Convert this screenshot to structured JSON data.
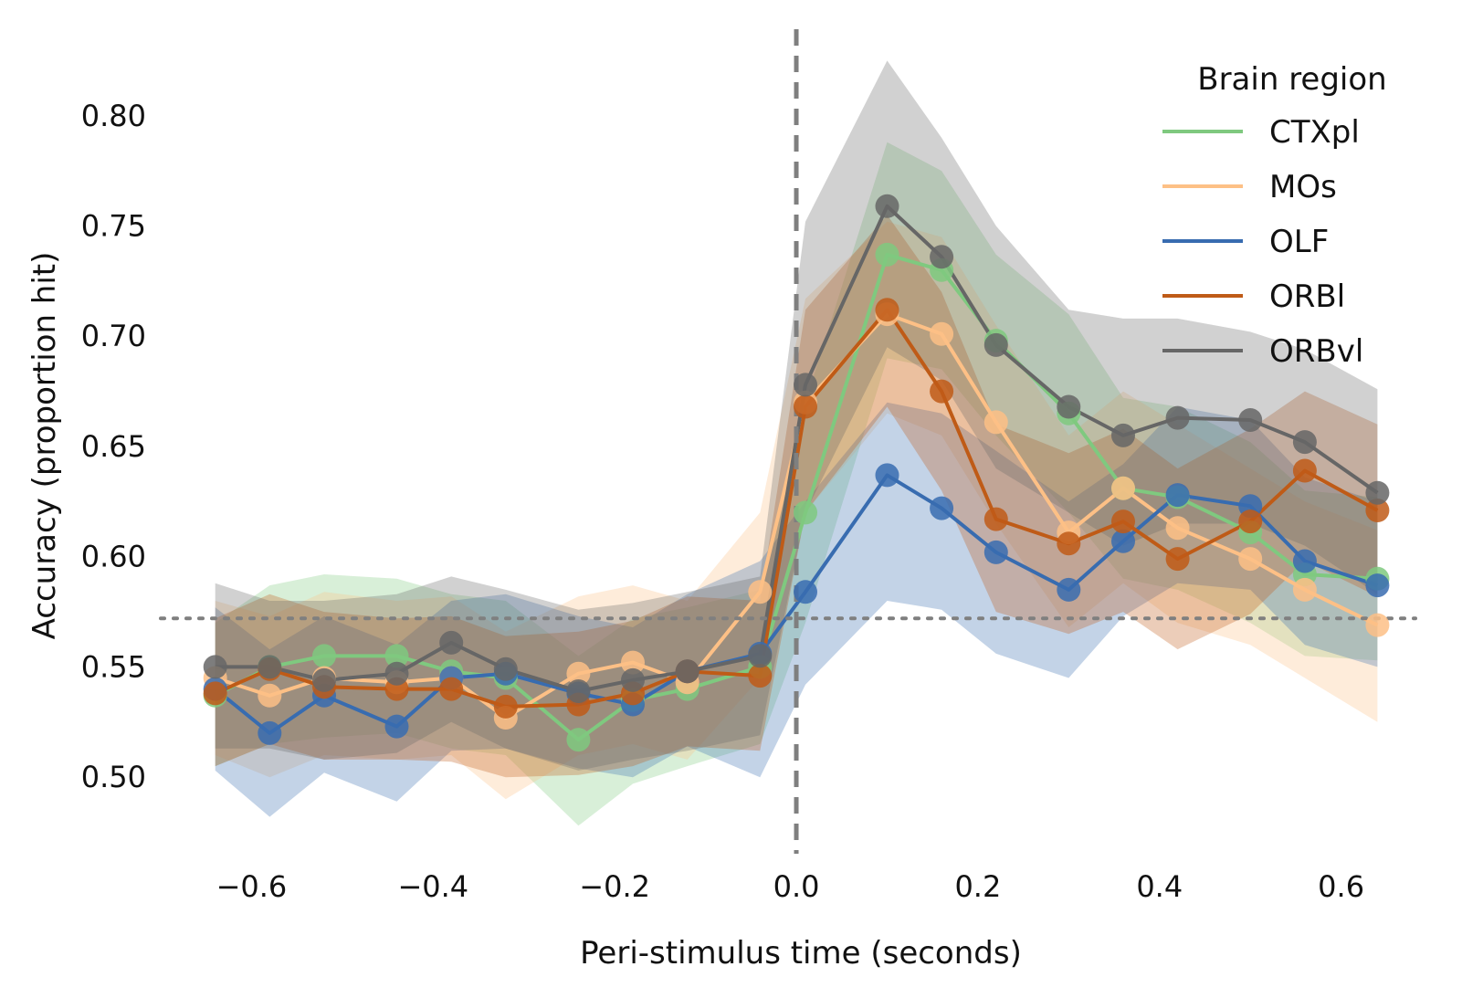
{
  "chart_data": {
    "type": "line",
    "title": "",
    "xlabel": "Peri-stimulus time (seconds)",
    "ylabel": "Accuracy (proportion hit)",
    "xlim": [
      -0.7,
      0.71
    ],
    "ylim": [
      0.457,
      0.838
    ],
    "xticks": [
      -0.6,
      -0.4,
      -0.2,
      0.0,
      0.2,
      0.4,
      0.6
    ],
    "xtick_labels": [
      "−0.6",
      "−0.4",
      "−0.2",
      "0.0",
      "0.2",
      "0.4",
      "0.6"
    ],
    "yticks": [
      0.5,
      0.55,
      0.6,
      0.65,
      0.7,
      0.75,
      0.8
    ],
    "ytick_labels": [
      "0.50",
      "0.55",
      "0.60",
      "0.65",
      "0.70",
      "0.75",
      "0.80"
    ],
    "grid": false,
    "legend": {
      "title": "Brain region",
      "position": "top-right"
    },
    "reference_lines": [
      {
        "orientation": "vertical",
        "value": 0.0,
        "style": "dashed",
        "color": "#7f7f7f"
      },
      {
        "orientation": "horizontal",
        "value": 0.572,
        "style": "dotted",
        "color": "#7f7f7f"
      }
    ],
    "x": [
      -0.64,
      -0.58,
      -0.52,
      -0.44,
      -0.38,
      -0.32,
      -0.24,
      -0.18,
      -0.12,
      -0.04,
      0.01,
      0.1,
      0.16,
      0.22,
      0.3,
      0.36,
      0.42,
      0.5,
      0.56,
      0.64
    ],
    "series": [
      {
        "name": "CTXpl",
        "color": "#7fc97f",
        "values": [
          0.537,
          0.55,
          0.555,
          0.555,
          0.548,
          0.545,
          0.517,
          0.535,
          0.54,
          0.55,
          0.62,
          0.737,
          0.73,
          0.698,
          0.665,
          0.631,
          0.627,
          0.611,
          0.592,
          0.59
        ],
        "lower": [
          0.505,
          0.515,
          0.518,
          0.52,
          0.513,
          0.51,
          0.478,
          0.497,
          0.505,
          0.515,
          0.57,
          0.69,
          0.685,
          0.655,
          0.62,
          0.59,
          0.585,
          0.57,
          0.555,
          0.553
        ],
        "upper": [
          0.57,
          0.587,
          0.592,
          0.59,
          0.583,
          0.58,
          0.555,
          0.572,
          0.577,
          0.585,
          0.67,
          0.788,
          0.775,
          0.737,
          0.71,
          0.672,
          0.668,
          0.652,
          0.63,
          0.627
        ]
      },
      {
        "name": "MOs",
        "color": "#fdc086",
        "values": [
          0.545,
          0.537,
          0.545,
          0.543,
          0.545,
          0.527,
          0.547,
          0.552,
          0.543,
          0.584,
          0.67,
          0.71,
          0.701,
          0.661,
          0.611,
          0.631,
          0.613,
          0.599,
          0.585,
          0.569
        ],
        "lower": [
          0.51,
          0.5,
          0.51,
          0.508,
          0.51,
          0.49,
          0.51,
          0.515,
          0.508,
          0.545,
          0.62,
          0.665,
          0.655,
          0.615,
          0.568,
          0.588,
          0.57,
          0.56,
          0.545,
          0.525
        ],
        "upper": [
          0.58,
          0.573,
          0.584,
          0.58,
          0.582,
          0.566,
          0.582,
          0.587,
          0.58,
          0.62,
          0.717,
          0.752,
          0.745,
          0.705,
          0.655,
          0.675,
          0.66,
          0.64,
          0.625,
          0.612
        ]
      },
      {
        "name": "OLF",
        "color": "#386cb0",
        "values": [
          0.54,
          0.52,
          0.537,
          0.523,
          0.545,
          0.547,
          0.538,
          0.533,
          0.548,
          0.556,
          0.584,
          0.637,
          0.622,
          0.602,
          0.585,
          0.607,
          0.628,
          0.623,
          0.598,
          0.587
        ],
        "lower": [
          0.503,
          0.482,
          0.502,
          0.489,
          0.512,
          0.513,
          0.504,
          0.5,
          0.514,
          0.5,
          0.542,
          0.58,
          0.576,
          0.556,
          0.545,
          0.573,
          0.588,
          0.585,
          0.56,
          0.55
        ],
        "upper": [
          0.577,
          0.558,
          0.573,
          0.56,
          0.58,
          0.583,
          0.573,
          0.568,
          0.583,
          0.598,
          0.625,
          0.67,
          0.665,
          0.648,
          0.625,
          0.642,
          0.668,
          0.662,
          0.636,
          0.625
        ]
      },
      {
        "name": "ORBl",
        "color": "#bf5b17",
        "values": [
          0.538,
          0.549,
          0.541,
          0.54,
          0.54,
          0.532,
          0.533,
          0.538,
          0.548,
          0.546,
          0.668,
          0.712,
          0.675,
          0.617,
          0.606,
          0.616,
          0.599,
          0.616,
          0.639,
          0.621
        ],
        "lower": [
          0.505,
          0.515,
          0.508,
          0.508,
          0.507,
          0.5,
          0.501,
          0.505,
          0.514,
          0.512,
          0.62,
          0.668,
          0.63,
          0.575,
          0.565,
          0.575,
          0.558,
          0.574,
          0.598,
          0.582
        ],
        "upper": [
          0.572,
          0.583,
          0.575,
          0.572,
          0.573,
          0.564,
          0.566,
          0.571,
          0.582,
          0.58,
          0.712,
          0.755,
          0.72,
          0.66,
          0.647,
          0.658,
          0.64,
          0.658,
          0.675,
          0.66
        ]
      },
      {
        "name": "ORBvl",
        "color": "#666666",
        "values": [
          0.55,
          0.55,
          0.544,
          0.547,
          0.561,
          0.549,
          0.539,
          0.544,
          0.548,
          0.555,
          0.678,
          0.759,
          0.736,
          0.696,
          0.668,
          0.655,
          0.663,
          0.662,
          0.652,
          0.629
        ],
        "lower": [
          0.513,
          0.513,
          0.508,
          0.511,
          0.525,
          0.513,
          0.503,
          0.508,
          0.512,
          0.519,
          0.62,
          0.695,
          0.68,
          0.64,
          0.62,
          0.605,
          0.615,
          0.615,
          0.605,
          0.583
        ],
        "upper": [
          0.588,
          0.58,
          0.58,
          0.583,
          0.591,
          0.585,
          0.576,
          0.579,
          0.584,
          0.591,
          0.752,
          0.825,
          0.79,
          0.75,
          0.712,
          0.708,
          0.708,
          0.702,
          0.694,
          0.676
        ]
      }
    ]
  }
}
